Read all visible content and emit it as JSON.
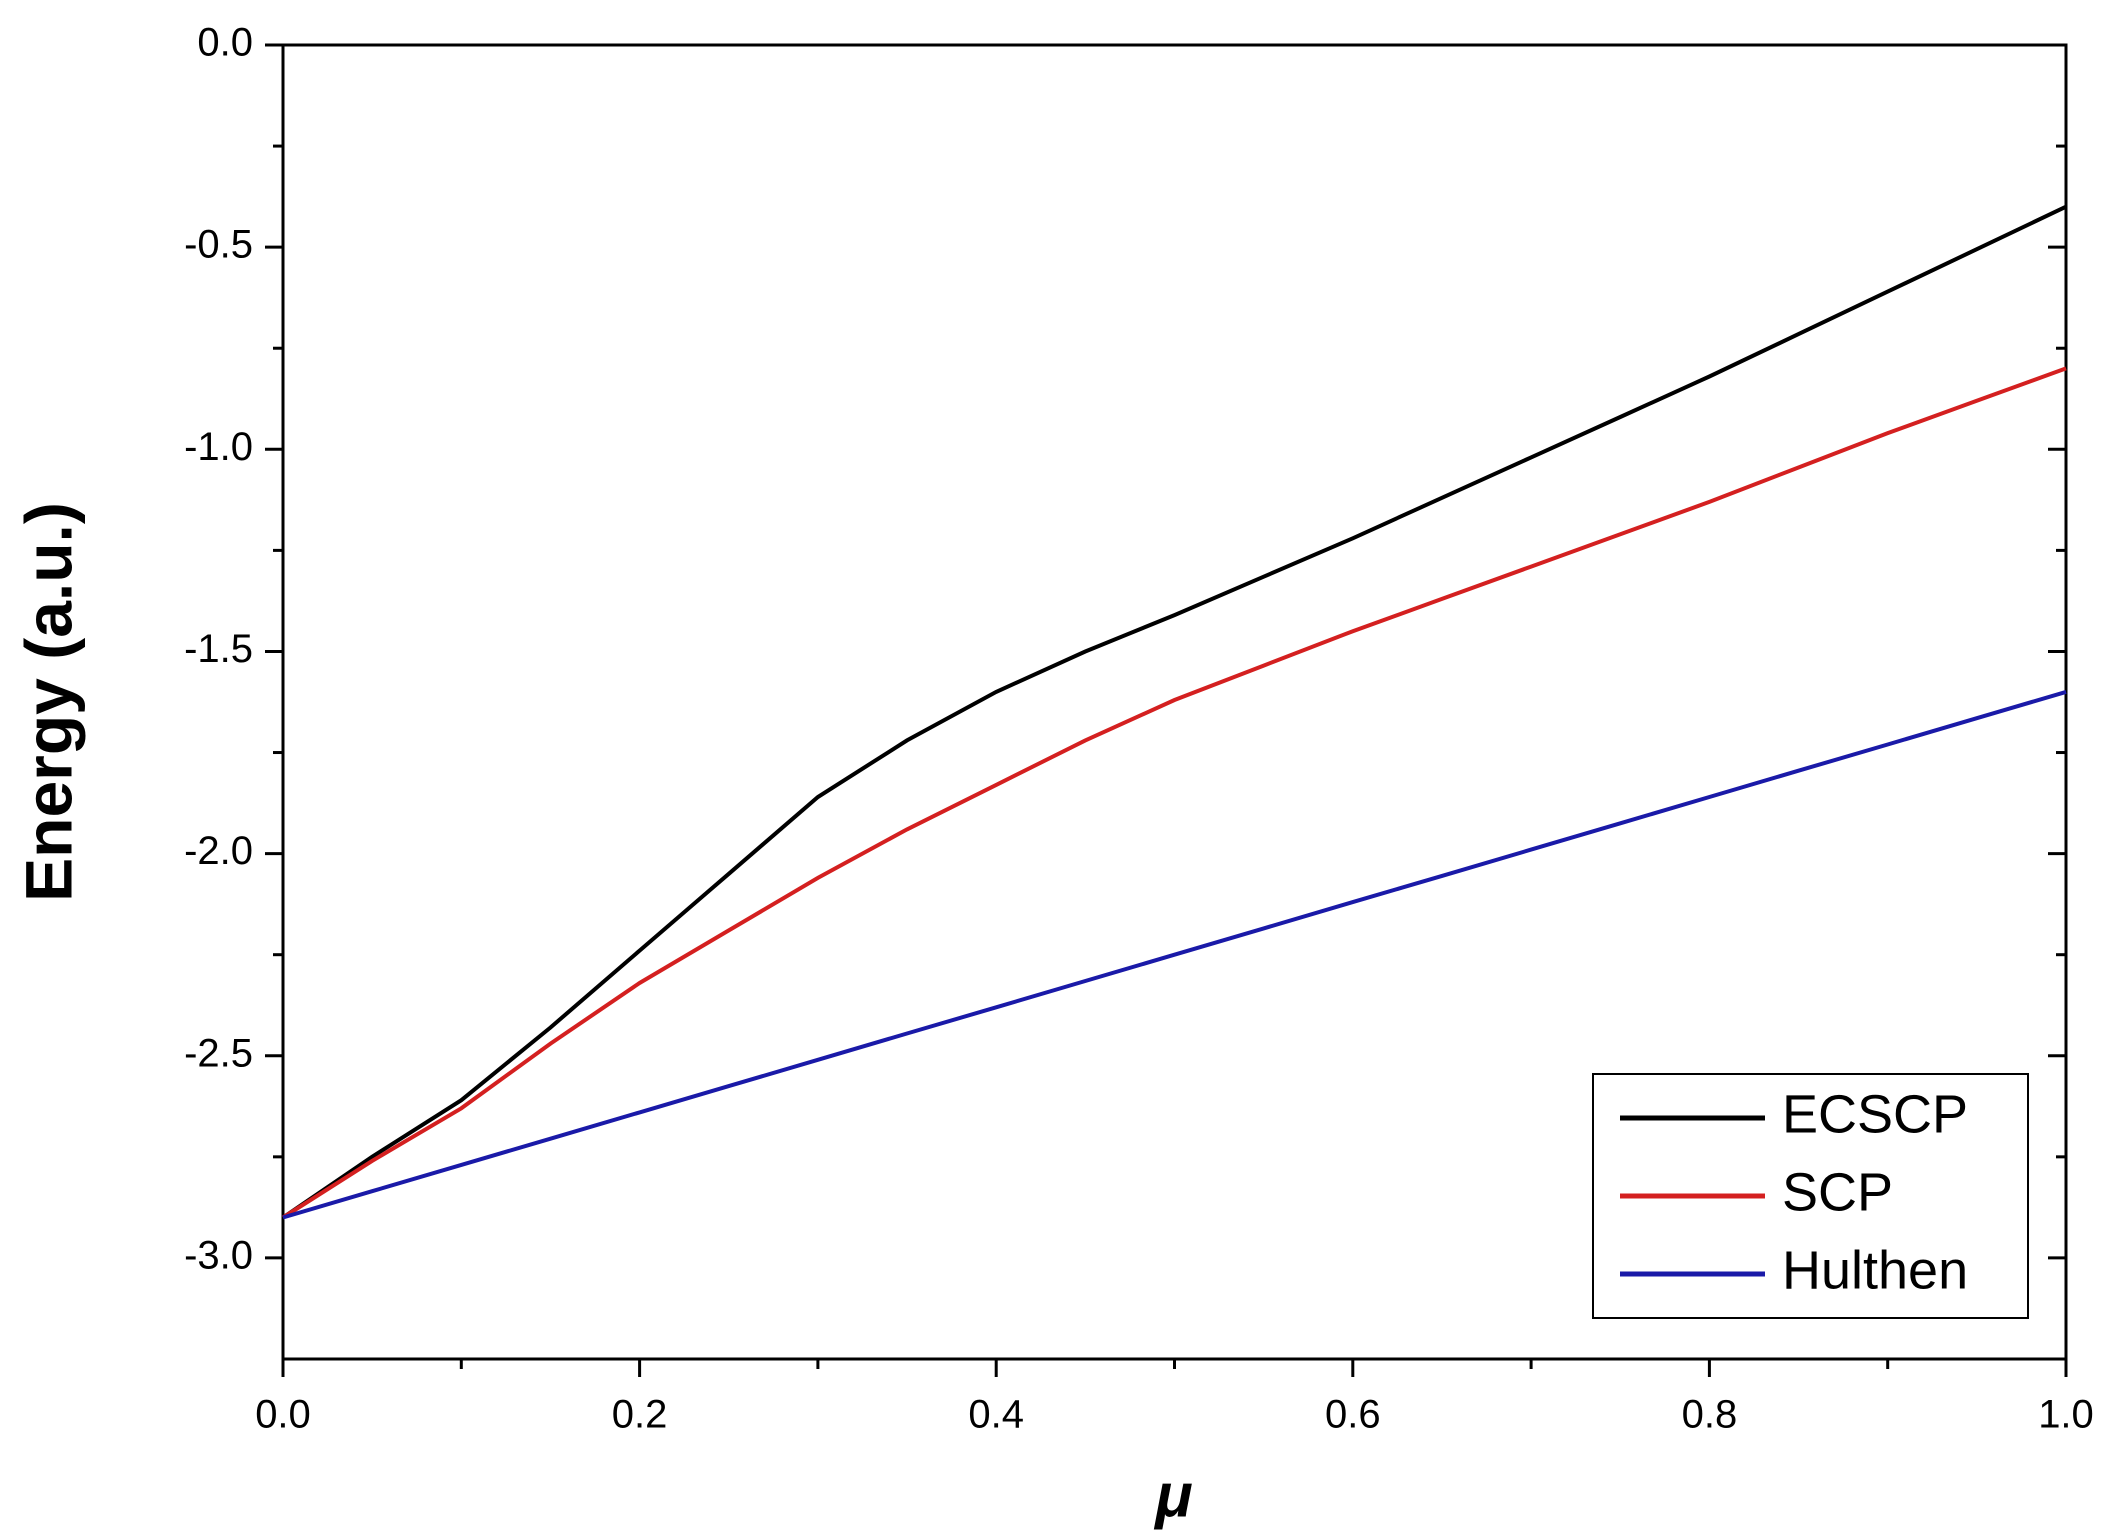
{
  "chart_data": {
    "type": "line",
    "xlabel": "μ",
    "ylabel": "Energy (a.u.)",
    "x": [
      0,
      0.05,
      0.1,
      0.15,
      0.2,
      0.25,
      0.3,
      0.35,
      0.4,
      0.45,
      0.5,
      0.55,
      0.6,
      0.65,
      0.7,
      0.75,
      0.8,
      0.85,
      0.9,
      0.95,
      1.0
    ],
    "series": [
      {
        "name": "ECSCP",
        "color": "#000000",
        "values": [
          -2.9,
          -2.75,
          -2.61,
          -2.43,
          -2.24,
          -2.05,
          -1.86,
          -1.72,
          -1.6,
          -1.5,
          -1.41,
          -1.315,
          -1.22,
          -1.12,
          -1.02,
          -0.92,
          -0.82,
          -0.715,
          -0.61,
          -0.505,
          -0.4
        ]
      },
      {
        "name": "SCP",
        "color": "#d42020",
        "values": [
          -2.9,
          -2.76,
          -2.63,
          -2.47,
          -2.32,
          -2.19,
          -2.06,
          -1.94,
          -1.83,
          -1.72,
          -1.62,
          -1.535,
          -1.45,
          -1.37,
          -1.29,
          -1.21,
          -1.13,
          -1.045,
          -0.96,
          -0.88,
          -0.8
        ]
      },
      {
        "name": "Hulthen",
        "color": "#1a1aa8",
        "values": [
          -2.9,
          -2.835,
          -2.77,
          -2.705,
          -2.64,
          -2.575,
          -2.51,
          -2.445,
          -2.38,
          -2.315,
          -2.25,
          -2.185,
          -2.12,
          -2.055,
          -1.99,
          -1.925,
          -1.86,
          -1.795,
          -1.73,
          -1.665,
          -1.6
        ]
      }
    ],
    "xlim": [
      0,
      1.0
    ],
    "xticks": [
      {
        "value": 0,
        "label": "0.0"
      },
      0.2,
      0.4,
      0.6,
      0.8,
      {
        "value": 1.0,
        "label": "1.0"
      }
    ],
    "ylim": [
      -3.25,
      0
    ],
    "yticks": [
      {
        "value": 0,
        "label": "0.0"
      },
      -0.5,
      {
        "value": -1.0,
        "label": "-1.0"
      },
      -1.5,
      {
        "value": -2.0,
        "label": "-2.0"
      },
      -2.5,
      {
        "value": -3.0,
        "label": "-3.0"
      }
    ],
    "legend": "lower right",
    "grid": false
  }
}
